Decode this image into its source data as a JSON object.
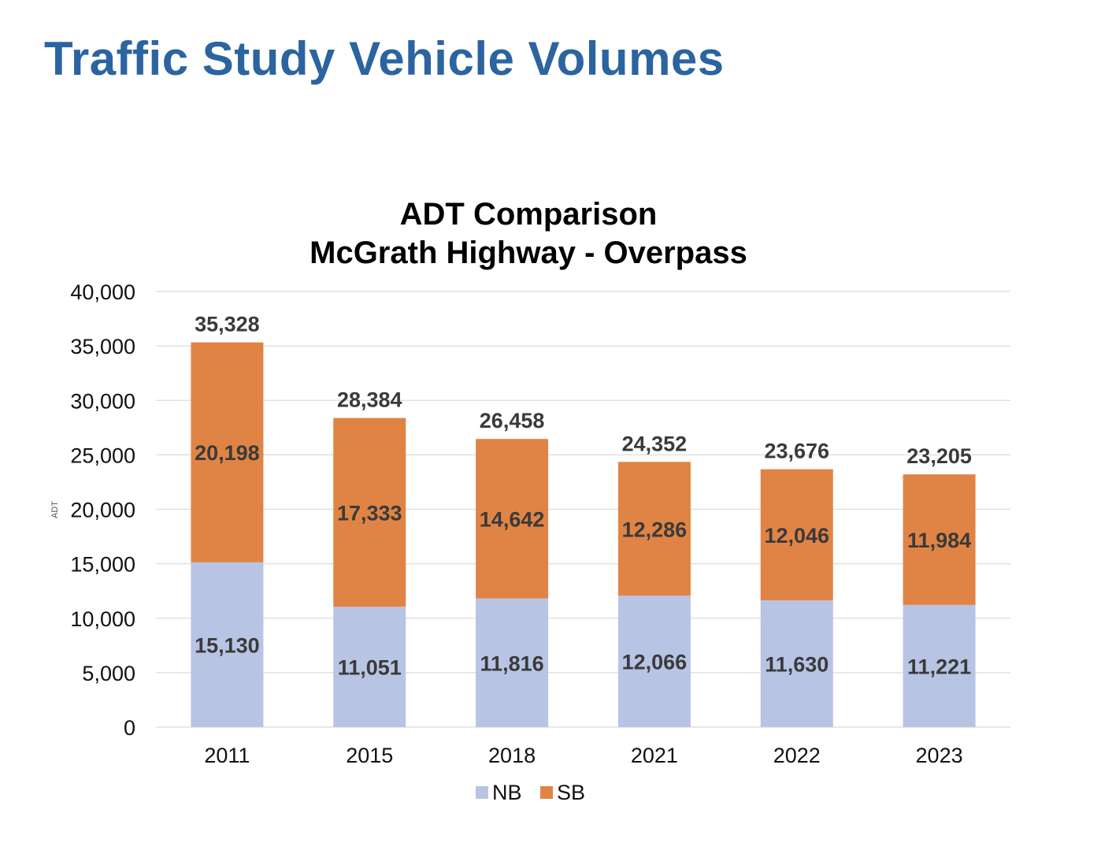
{
  "page": {
    "title": "Traffic Study Vehicle Volumes",
    "title_color": "#2b64a0"
  },
  "chart_data": {
    "type": "bar",
    "stacked": true,
    "title": "ADT Comparison",
    "subtitle": "McGrath Highway - Overpass",
    "ylabel": "ADT",
    "xlabel": "",
    "categories": [
      "2011",
      "2015",
      "2018",
      "2021",
      "2022",
      "2023"
    ],
    "series": [
      {
        "name": "NB",
        "color": "#b8c4e4",
        "values": [
          15130,
          11051,
          11816,
          12066,
          11630,
          11221
        ],
        "labels": [
          "15,130",
          "11,051",
          "11,816",
          "12,066",
          "11,630",
          "11,221"
        ]
      },
      {
        "name": "SB",
        "color": "#e08445",
        "values": [
          20198,
          17333,
          14642,
          12286,
          12046,
          11984
        ],
        "labels": [
          "20,198",
          "17,333",
          "14,642",
          "12,286",
          "12,046",
          "11,984"
        ]
      }
    ],
    "totals": [
      35328,
      28384,
      26458,
      24352,
      23676,
      23205
    ],
    "total_labels": [
      "35,328",
      "28,384",
      "26,458",
      "24,352",
      "23,676",
      "23,205"
    ],
    "ylim": [
      0,
      40000
    ],
    "yticks": [
      0,
      5000,
      10000,
      15000,
      20000,
      25000,
      30000,
      35000,
      40000
    ],
    "ytick_labels": [
      "0",
      "5,000",
      "10,000",
      "15,000",
      "20,000",
      "25,000",
      "30,000",
      "35,000",
      "40,000"
    ],
    "grid": true,
    "legend": "bottom"
  }
}
